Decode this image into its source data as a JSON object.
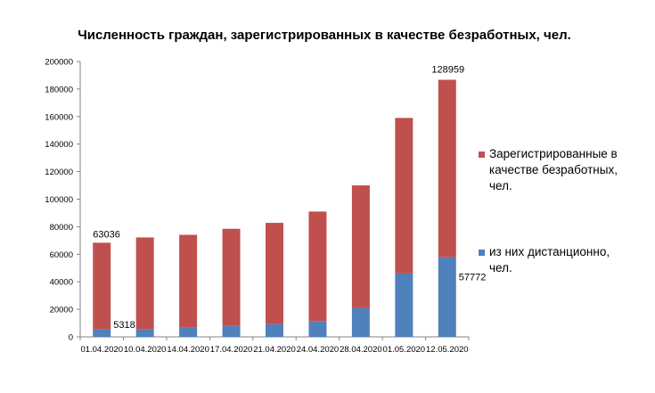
{
  "chart_data": {
    "type": "bar",
    "stacked": true,
    "title": "Численность граждан, зарегистрированных в качестве безработных, чел.",
    "xlabel": "",
    "ylabel": "",
    "ylim": [
      0,
      200000
    ],
    "y_ticks": [
      "0",
      "20000",
      "40000",
      "60000",
      "80000",
      "100000",
      "120000",
      "140000",
      "160000",
      "180000",
      "200000"
    ],
    "grid": false,
    "legend_position": "right",
    "categories": [
      "01.04.2020",
      "10.04.2020",
      "14.04.2020",
      "17.04.2020",
      "21.04.2020",
      "24.04.2020",
      "28.04.2020",
      "01.05.2020",
      "12.05.2020"
    ],
    "series": [
      {
        "name": "из них дистанционно, чел.",
        "color": "#4f81bd",
        "values": [
          5318,
          5600,
          6600,
          8000,
          9300,
          11500,
          21000,
          46000,
          57772
        ]
      },
      {
        "name": "Зарегистрированные в качестве безработных, чел.",
        "color": "#c0504d",
        "values": [
          63036,
          66600,
          67500,
          70500,
          73500,
          79500,
          89000,
          113000,
          128959
        ]
      }
    ],
    "legend": [
      {
        "lines": [
          "Зарегистрированные в",
          "качестве безработных,",
          "чел."
        ],
        "color": "#c0504d"
      },
      {
        "lines": [
          "из них дистанционно,",
          "чел."
        ],
        "color": "#4f81bd"
      }
    ],
    "data_labels": [
      {
        "category": "01.04.2020",
        "text": "63036",
        "anchor": "top-left"
      },
      {
        "category": "01.04.2020",
        "text": "5318",
        "anchor": "bottom-right"
      },
      {
        "category": "12.05.2020",
        "text": "128959",
        "anchor": "top"
      },
      {
        "category": "12.05.2020",
        "text": "57772",
        "anchor": "lower-right"
      }
    ]
  }
}
